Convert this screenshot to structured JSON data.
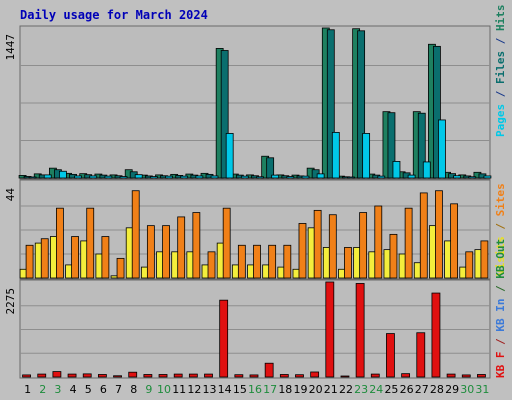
{
  "title": "Daily usage for March 2024",
  "colors": {
    "background": "#c0c0c0",
    "panel": "#bcbcbc",
    "grid": "#8e8e8e",
    "title": "#0000b8",
    "pages": "#00c8e8",
    "files": "#0a6e6e",
    "hits": "#1e8060",
    "visits": "#f4ee3c",
    "sites": "#f08018",
    "kb": "#e01010",
    "weekday_label": "#000000",
    "weekend_label": "#1e8c3c"
  },
  "legend_top": [
    {
      "text": "Pages",
      "color": "#00c8e8"
    },
    {
      "text": " / ",
      "color": "#1a3a8a"
    },
    {
      "text": "Files",
      "color": "#0a6e6e"
    },
    {
      "text": " / ",
      "color": "#1a3a8a"
    },
    {
      "text": "Hits",
      "color": "#1e8060"
    }
  ],
  "legend_mid": [
    {
      "text": "Visits",
      "color": "#e8e020"
    },
    {
      "text": " / ",
      "color": "#a07010"
    },
    {
      "text": "Sites",
      "color": "#f08018"
    }
  ],
  "legend_bottom": [
    {
      "text": "KB F",
      "color": "#e01010"
    },
    {
      "text": " / ",
      "color": "#a02020"
    },
    {
      "text": "KB In",
      "color": "#3c7ad8"
    },
    {
      "text": " / ",
      "color": "#2a6a2a"
    },
    {
      "text": "KB Out",
      "color": "#1e8c3c"
    }
  ],
  "chart_data": {
    "type": "bar",
    "title": "Daily usage for March 2024",
    "categories": [
      "1",
      "2",
      "3",
      "4",
      "5",
      "6",
      "7",
      "8",
      "9",
      "10",
      "11",
      "12",
      "13",
      "14",
      "15",
      "16",
      "17",
      "18",
      "19",
      "20",
      "21",
      "22",
      "23",
      "24",
      "25",
      "26",
      "27",
      "28",
      "29",
      "30",
      "31"
    ],
    "weekend_days": [
      "2",
      "3",
      "9",
      "10",
      "16",
      "17",
      "23",
      "24",
      "30",
      "31"
    ],
    "panels": [
      {
        "name": "hits-files-pages",
        "ymax_label": "1447",
        "ymax": 1447,
        "series": [
          {
            "name": "Hits",
            "color": "#1e8060",
            "values": [
              25,
              40,
              95,
              45,
              42,
              38,
              30,
              80,
              28,
              30,
              35,
              38,
              45,
              1250,
              38,
              30,
              210,
              30,
              28,
              95,
              1447,
              18,
              1440,
              38,
              640,
              60,
              640,
              1290,
              55,
              30,
              55
            ]
          },
          {
            "name": "Files",
            "color": "#0a6e6e",
            "values": [
              15,
              30,
              80,
              35,
              32,
              28,
              22,
              60,
              20,
              22,
              25,
              28,
              35,
              1230,
              28,
              22,
              195,
              22,
              20,
              80,
              1430,
              12,
              1420,
              28,
              630,
              50,
              625,
              1270,
              42,
              20,
              40
            ]
          },
          {
            "name": "Pages",
            "color": "#00c8e8",
            "values": [
              10,
              30,
              65,
              20,
              20,
              18,
              14,
              32,
              14,
              18,
              18,
              20,
              20,
              430,
              18,
              12,
              28,
              14,
              18,
              40,
              440,
              8,
              430,
              18,
              160,
              28,
              155,
              560,
              22,
              12,
              20
            ]
          }
        ]
      },
      {
        "name": "sites-visits",
        "ymax_label": "44",
        "ymax": 44,
        "series": [
          {
            "name": "Visits",
            "color": "#f4ee3c",
            "values": [
              4,
              16,
              19,
              6,
              17,
              11,
              1,
              23,
              5,
              12,
              12,
              12,
              6,
              16,
              6,
              6,
              6,
              5,
              4,
              23,
              14,
              4,
              14,
              12,
              13,
              11,
              7,
              24,
              17,
              5,
              13
            ]
          },
          {
            "name": "Sites",
            "color": "#f08018",
            "values": [
              15,
              18,
              32,
              19,
              32,
              19,
              9,
              40,
              24,
              24,
              28,
              30,
              12,
              32,
              15,
              15,
              15,
              15,
              25,
              31,
              29,
              14,
              30,
              33,
              20,
              32,
              39,
              40,
              34,
              12,
              17
            ]
          }
        ]
      },
      {
        "name": "kbytes",
        "ymax_label": "2275",
        "ymax": 2275,
        "series": [
          {
            "name": "KB F",
            "color": "#e01010",
            "values": [
              50,
              70,
              130,
              70,
              75,
              60,
              30,
              115,
              60,
              60,
              70,
              70,
              70,
              1840,
              55,
              50,
              330,
              60,
              55,
              120,
              2275,
              20,
              2240,
              70,
              1040,
              80,
              1060,
              2010,
              70,
              50,
              60
            ]
          }
        ]
      }
    ]
  }
}
